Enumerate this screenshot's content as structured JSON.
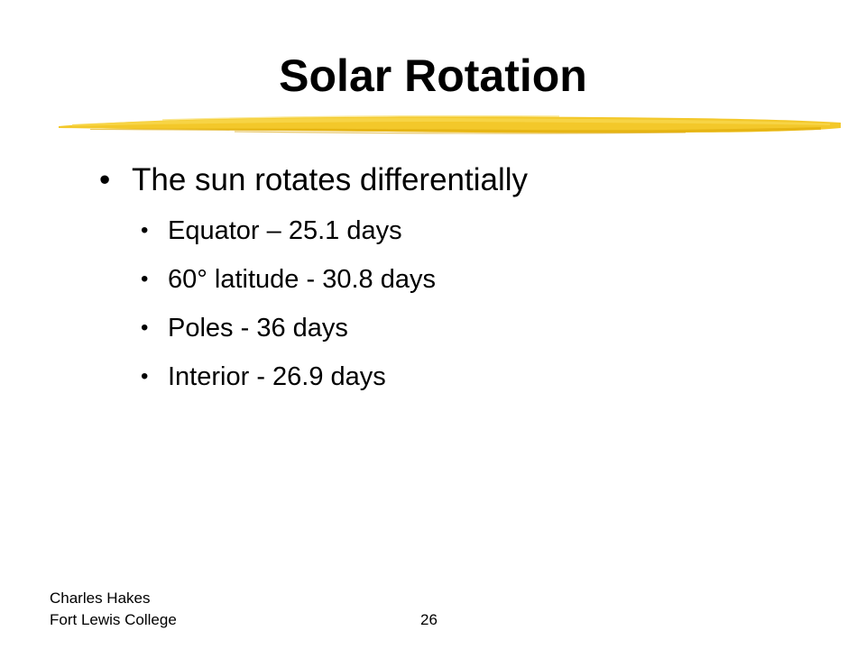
{
  "slide": {
    "title": "Solar Rotation",
    "accent_color": "#f2c318",
    "bullet_glyph": "•",
    "main_bullet": "The sun rotates differentially",
    "sub_bullets": [
      "Equator – 25.1 days",
      "60° latitude - 30.8 days",
      "Poles - 36 days",
      "Interior - 26.9 days"
    ]
  },
  "footer": {
    "author_line1": "Charles Hakes",
    "author_line2": "Fort Lewis College",
    "page_number": "26"
  }
}
